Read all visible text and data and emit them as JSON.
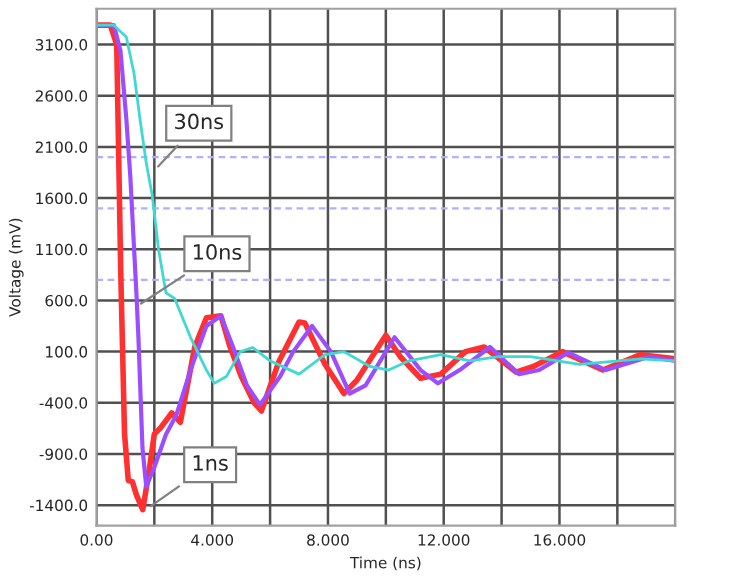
{
  "chart_data": {
    "type": "line",
    "xlabel": "Time (ns)",
    "ylabel": "Voltage (mV)",
    "x": [
      0,
      0.48,
      0.7,
      0.84,
      0.97,
      1.1,
      1.24,
      1.38,
      1.6,
      1.8,
      2.0,
      2.2,
      2.6,
      2.9,
      3.4,
      3.8,
      4.3,
      4.6,
      5.0,
      5.45,
      5.7,
      6.3,
      7.0,
      7.2,
      7.9,
      8.55,
      9.0,
      10.0,
      10.5,
      11.2,
      11.9,
      12.75,
      13.4,
      14.5,
      15.1,
      16.1,
      17.5,
      18.8,
      20
    ],
    "series": [
      {
        "color": "#ff3030",
        "values": [
          3290,
          3290,
          3100,
          865,
          -700,
          -1160,
          -1170,
          -1300,
          -1445,
          -1100,
          -705,
          -650,
          -500,
          -590,
          150,
          430,
          450,
          160,
          -140,
          -400,
          -480,
          0,
          390,
          380,
          -25,
          -310,
          -180,
          260,
          50,
          -160,
          -120,
          100,
          145,
          -100,
          -45,
          100,
          -80,
          70,
          30
        ]
      },
      {
        "color": "#9b4dff",
        "x": [
          0,
          0.6,
          0.83,
          1.03,
          1.17,
          1.31,
          1.38,
          1.45,
          1.59,
          1.72,
          2.0,
          2.4,
          2.76,
          3.25,
          3.8,
          4.3,
          4.7,
          5.2,
          5.65,
          6.35,
          6.8,
          7.45,
          8.1,
          8.75,
          9.3,
          10.3,
          11.2,
          11.8,
          12.55,
          13.6,
          14.6,
          15.3,
          16.3,
          17.6,
          19.1,
          20
        ],
        "values": [
          3290,
          3290,
          3040,
          2380,
          1810,
          1050,
          675,
          240,
          -840,
          -1220,
          -1030,
          -710,
          -520,
          -80,
          350,
          450,
          160,
          -230,
          -420,
          -140,
          100,
          350,
          100,
          -310,
          -230,
          240,
          -80,
          -210,
          -80,
          145,
          -120,
          -80,
          90,
          -80,
          50,
          10
        ]
      },
      {
        "color": "#40d8d0",
        "x": [
          0,
          0.6,
          1.03,
          1.3,
          1.5,
          1.72,
          1.93,
          2.14,
          2.4,
          2.7,
          3.25,
          3.8,
          4.07,
          4.5,
          4.97,
          5.4,
          6.0,
          7.0,
          7.9,
          8.55,
          9.45,
          10.1,
          10.8,
          11.9,
          12.9,
          13.9,
          15.0,
          16.7,
          18.8,
          20
        ],
        "values": [
          3290,
          3290,
          3175,
          2815,
          2380,
          1945,
          1620,
          1110,
          675,
          620,
          240,
          -80,
          -210,
          -140,
          100,
          140,
          10,
          -120,
          70,
          100,
          -45,
          -80,
          10,
          70,
          10,
          50,
          50,
          -25,
          30,
          10
        ]
      }
    ],
    "xlim": [
      0,
      20
    ],
    "xticks": [
      {
        "value": 0,
        "label": "0.00"
      },
      {
        "value": 2,
        "label": null
      },
      {
        "value": 4,
        "label": "4.000"
      },
      {
        "value": 6,
        "label": null
      },
      {
        "value": 8,
        "label": "8.000"
      },
      {
        "value": 10,
        "label": null
      },
      {
        "value": 12,
        "label": "12.000"
      },
      {
        "value": 14,
        "label": null
      },
      {
        "value": 16,
        "label": "16.000"
      },
      {
        "value": 18,
        "label": null
      },
      {
        "value": 20,
        "label": null
      }
    ],
    "ylim": [
      -1600,
      3450
    ],
    "yticks": [
      {
        "value": -1400,
        "label": "-1400.0"
      },
      {
        "value": -900,
        "label": "-900.0"
      },
      {
        "value": -400,
        "label": "-400.0"
      },
      {
        "value": 100,
        "label": "100.0"
      },
      {
        "value": 600,
        "label": "600.0"
      },
      {
        "value": 1100,
        "label": "1100.0"
      },
      {
        "value": 1600,
        "label": "1600.0"
      },
      {
        "value": 2100,
        "label": "2100.0"
      },
      {
        "value": 2600,
        "label": "2600.0"
      },
      {
        "value": 3100,
        "label": "3100.0"
      }
    ],
    "grid": true,
    "line_style": "solid",
    "marker": "none",
    "ref_lines": [
      {
        "axis": "y",
        "value": 2000,
        "color": "#b0b0ff",
        "line_style": "dashed"
      },
      {
        "axis": "y",
        "value": 1500,
        "color": "#b0b0ff",
        "line_style": "dashed"
      },
      {
        "axis": "y",
        "value": 800,
        "color": "#b0b0ff",
        "line_style": "dashed"
      }
    ],
    "annotations": [
      {
        "text": "30ns",
        "x": 2.0,
        "y": 1870
      },
      {
        "text": "10ns",
        "x": 1.38,
        "y": 540
      },
      {
        "text": "1ns",
        "x": 1.72,
        "y": -1440
      }
    ]
  }
}
